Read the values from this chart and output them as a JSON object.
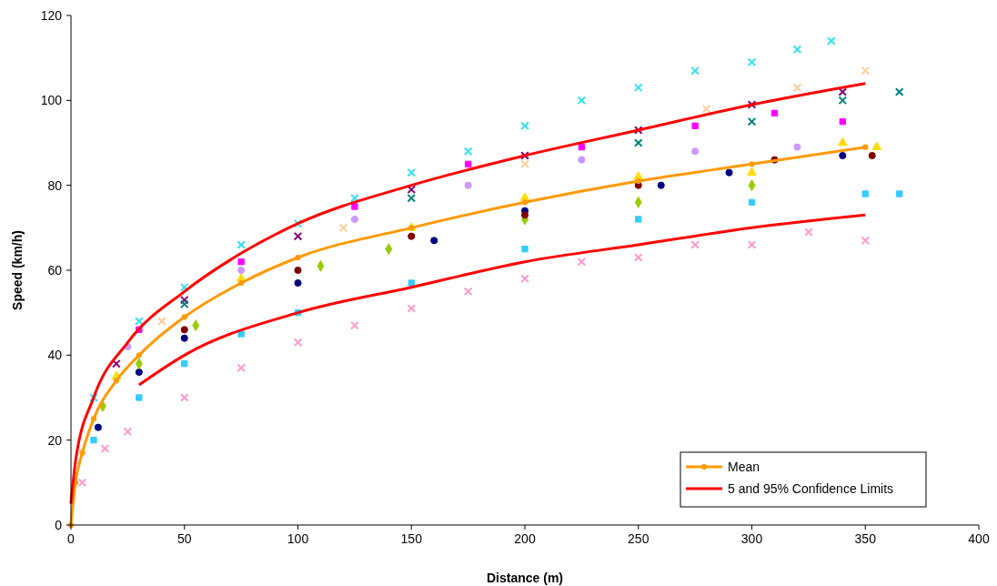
{
  "chart_data": {
    "type": "scatter",
    "xlabel": "Distance (m)",
    "ylabel": "Speed (km/h)",
    "xlim": [
      0,
      400
    ],
    "ylim": [
      0,
      120
    ],
    "xticks": [
      0,
      50,
      100,
      150,
      200,
      250,
      300,
      350,
      400
    ],
    "yticks": [
      0,
      20,
      40,
      60,
      80,
      100,
      120
    ],
    "grid": false,
    "legend": "bottom right",
    "series": [
      {
        "color": "#33e0f0",
        "marker": "cross",
        "x": [
          10,
          30,
          50,
          75,
          100,
          125,
          150,
          175,
          200,
          225,
          250,
          275,
          300,
          320,
          335
        ],
        "values": [
          30,
          48,
          56,
          66,
          71,
          77,
          83,
          88,
          94,
          100,
          103,
          107,
          109,
          112,
          114
        ]
      },
      {
        "color": "#ff99cc",
        "marker": "cross",
        "x": [
          5,
          15,
          25,
          50,
          75,
          100,
          125,
          150,
          175,
          200,
          225,
          250,
          275,
          300,
          325,
          350
        ],
        "values": [
          10,
          18,
          22,
          30,
          37,
          43,
          47,
          51,
          55,
          58,
          62,
          63,
          66,
          66,
          69,
          67
        ]
      },
      {
        "color": "#800080",
        "marker": "cross",
        "x": [
          20,
          50,
          100,
          150,
          200,
          250,
          300,
          340
        ],
        "values": [
          38,
          53,
          68,
          79,
          87,
          93,
          99,
          102
        ]
      },
      {
        "color": "#33ccff",
        "marker": "square",
        "x": [
          10,
          30,
          50,
          75,
          100,
          150,
          200,
          250,
          300,
          350,
          365
        ],
        "values": [
          20,
          30,
          38,
          45,
          50,
          57,
          65,
          72,
          76,
          78,
          78
        ]
      },
      {
        "color": "#000080",
        "marker": "circle",
        "x": [
          12,
          30,
          50,
          100,
          160,
          200,
          260,
          290,
          340
        ],
        "values": [
          23,
          36,
          44,
          57,
          67,
          74,
          80,
          83,
          87
        ]
      },
      {
        "color": "#99cc00",
        "marker": "diamond",
        "x": [
          14,
          30,
          55,
          110,
          140,
          200,
          250,
          300
        ],
        "values": [
          28,
          38,
          47,
          61,
          65,
          72,
          76,
          80
        ]
      },
      {
        "color": "#ffdd00",
        "marker": "triangle",
        "x": [
          20,
          75,
          150,
          200,
          250,
          300,
          340,
          355
        ],
        "values": [
          35,
          58,
          70,
          77,
          82,
          83,
          90,
          89
        ]
      },
      {
        "color": "#ff00ff",
        "marker": "square",
        "x": [
          30,
          75,
          125,
          175,
          225,
          275,
          310,
          340
        ],
        "values": [
          46,
          62,
          75,
          85,
          89,
          94,
          97,
          95
        ]
      },
      {
        "color": "#cc99ff",
        "marker": "circle",
        "x": [
          25,
          75,
          125,
          175,
          225,
          275,
          320
        ],
        "values": [
          42,
          60,
          72,
          80,
          86,
          88,
          89
        ]
      },
      {
        "color": "#008080",
        "marker": "cross",
        "x": [
          50,
          150,
          250,
          300,
          340,
          365
        ],
        "values": [
          52,
          77,
          90,
          95,
          100,
          102
        ]
      },
      {
        "color": "#ffcc99",
        "marker": "cross",
        "x": [
          40,
          120,
          200,
          280,
          320,
          350
        ],
        "values": [
          48,
          70,
          85,
          98,
          103,
          107
        ]
      },
      {
        "color": "#800000",
        "marker": "circle",
        "x": [
          50,
          100,
          150,
          200,
          250,
          310,
          353
        ],
        "values": [
          46,
          60,
          68,
          73,
          80,
          86,
          87
        ]
      },
      {
        "type": "line",
        "name": "Mean",
        "color": "#ff9900",
        "marker": "circle",
        "x": [
          0,
          2,
          5,
          10,
          20,
          30,
          50,
          75,
          100,
          150,
          200,
          250,
          300,
          350
        ],
        "values": [
          0,
          10,
          17,
          25,
          34,
          40,
          49,
          57,
          63,
          70,
          76,
          81,
          85,
          89
        ]
      },
      {
        "type": "line",
        "name": "5 and 95% Confidence Limits",
        "color": "#ff0000",
        "marker": "none",
        "x": [
          0,
          2,
          10,
          25,
          50,
          75,
          100,
          150,
          200,
          250,
          300,
          350
        ],
        "values": [
          5,
          15,
          30,
          43,
          55,
          64,
          71,
          80,
          87,
          93,
          99,
          104
        ]
      },
      {
        "type": "line",
        "color": "#ff0000",
        "marker": "none",
        "x": [
          30,
          50,
          100,
          150,
          200,
          250,
          300,
          350
        ],
        "values": [
          33,
          40,
          50,
          56,
          62,
          66,
          70,
          73
        ]
      }
    ]
  }
}
